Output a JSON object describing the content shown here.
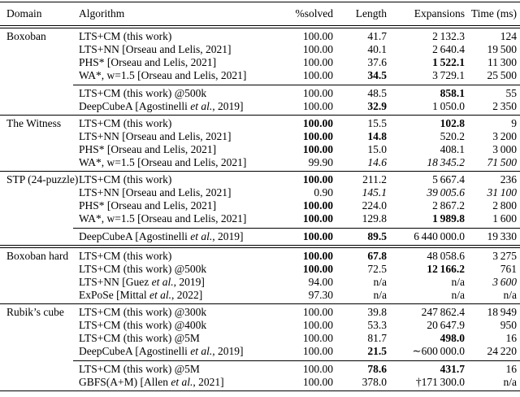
{
  "colors": {
    "background": "#ffffff",
    "text": "#000000",
    "rule": "#000000"
  },
  "table": {
    "columns": [
      "Domain",
      "Algorithm",
      "%solved",
      "Length",
      "Expansions",
      "Time (ms)"
    ],
    "sections": [
      {
        "domain": "Boxoban",
        "rule_above": "none",
        "groups": [
          [
            {
              "algorithm": "LTS+CM (this work)",
              "values": [
                "100.00",
                "41.7",
                "2 132.3",
                "124"
              ],
              "styles": [
                "n",
                "n",
                "n",
                "n"
              ]
            },
            {
              "algorithm": "LTS+NN [Orseau and Lelis, 2021]",
              "values": [
                "100.00",
                "40.1",
                "2 640.4",
                "19 500"
              ],
              "styles": [
                "n",
                "n",
                "n",
                "n"
              ]
            },
            {
              "algorithm": "PHS* [Orseau and Lelis, 2021]",
              "values": [
                "100.00",
                "37.6",
                "1 522.1",
                "11 300"
              ],
              "styles": [
                "n",
                "n",
                "b",
                "n"
              ]
            },
            {
              "algorithm": "WA*, w=1.5 [Orseau and Lelis, 2021]",
              "values": [
                "100.00",
                "34.5",
                "3 729.1",
                "25 500"
              ],
              "styles": [
                "n",
                "b",
                "n",
                "n"
              ]
            }
          ],
          [
            {
              "algorithm": "LTS+CM (this work) @500k",
              "values": [
                "100.00",
                "48.5",
                "858.1",
                "55"
              ],
              "styles": [
                "n",
                "n",
                "b",
                "n"
              ]
            },
            {
              "algorithm": "DeepCubeA [Agostinelli et al., 2019]",
              "values": [
                "100.00",
                "32.9",
                "1 050.0",
                "2 350"
              ],
              "styles": [
                "n",
                "b",
                "n",
                "n"
              ]
            }
          ]
        ]
      },
      {
        "domain": "The Witness",
        "rule_above": "single",
        "groups": [
          [
            {
              "algorithm": "LTS+CM (this work)",
              "values": [
                "100.00",
                "15.5",
                "102.8",
                "9"
              ],
              "styles": [
                "b",
                "n",
                "b",
                "n"
              ]
            },
            {
              "algorithm": "LTS+NN [Orseau and Lelis, 2021]",
              "values": [
                "100.00",
                "14.8",
                "520.2",
                "3 200"
              ],
              "styles": [
                "b",
                "b",
                "n",
                "n"
              ]
            },
            {
              "algorithm": "PHS* [Orseau and Lelis, 2021]",
              "values": [
                "100.00",
                "15.0",
                "408.1",
                "3 000"
              ],
              "styles": [
                "b",
                "n",
                "n",
                "n"
              ]
            },
            {
              "algorithm": "WA*, w=1.5 [Orseau and Lelis, 2021]",
              "values": [
                "99.90",
                "14.6",
                "18 345.2",
                "71 500"
              ],
              "styles": [
                "n",
                "i",
                "i",
                "i"
              ]
            }
          ]
        ]
      },
      {
        "domain": "STP (24-puzzle)",
        "rule_above": "single",
        "groups": [
          [
            {
              "algorithm": "LTS+CM (this work)",
              "values": [
                "100.00",
                "211.2",
                "5 667.4",
                "236"
              ],
              "styles": [
                "b",
                "n",
                "n",
                "n"
              ]
            },
            {
              "algorithm": "LTS+NN [Orseau and Lelis, 2021]",
              "values": [
                "0.90",
                "145.1",
                "39 005.6",
                "31 100"
              ],
              "styles": [
                "n",
                "i",
                "i",
                "i"
              ]
            },
            {
              "algorithm": "PHS* [Orseau and Lelis, 2021]",
              "values": [
                "100.00",
                "224.0",
                "2 867.2",
                "2 800"
              ],
              "styles": [
                "b",
                "n",
                "n",
                "n"
              ]
            },
            {
              "algorithm": "WA*, w=1.5 [Orseau and Lelis, 2021]",
              "values": [
                "100.00",
                "129.8",
                "1 989.8",
                "1 600"
              ],
              "styles": [
                "b",
                "n",
                "b",
                "n"
              ]
            }
          ],
          [
            {
              "algorithm": "DeepCubeA [Agostinelli et al., 2019]",
              "values": [
                "100.00",
                "89.5",
                "6 440 000.0",
                "19 330"
              ],
              "styles": [
                "b",
                "b",
                "n",
                "n"
              ]
            }
          ]
        ]
      },
      {
        "domain": "Boxoban hard",
        "rule_above": "double",
        "groups": [
          [
            {
              "algorithm": "LTS+CM (this work)",
              "values": [
                "100.00",
                "67.8",
                "48 058.6",
                "3 275"
              ],
              "styles": [
                "b",
                "b",
                "n",
                "n"
              ]
            },
            {
              "algorithm": "LTS+CM (this work) @500k",
              "values": [
                "100.00",
                "72.5",
                "12 166.2",
                "761"
              ],
              "styles": [
                "b",
                "n",
                "b",
                "n"
              ]
            },
            {
              "algorithm": "LTS+NN [Guez et al., 2019]",
              "values": [
                "94.00",
                "n/a",
                "n/a",
                "3 600"
              ],
              "styles": [
                "n",
                "n",
                "n",
                "i"
              ]
            },
            {
              "algorithm": "ExPoSe [Mittal et al., 2022]",
              "values": [
                "97.30",
                "n/a",
                "n/a",
                "n/a"
              ],
              "styles": [
                "n",
                "n",
                "n",
                "n"
              ]
            }
          ]
        ]
      },
      {
        "domain": "Rubik’s cube",
        "rule_above": "single",
        "groups": [
          [
            {
              "algorithm": "LTS+CM (this work) @300k",
              "values": [
                "100.00",
                "39.8",
                "247 862.4",
                "18 949"
              ],
              "styles": [
                "n",
                "n",
                "n",
                "n"
              ]
            },
            {
              "algorithm": "LTS+CM (this work) @400k",
              "values": [
                "100.00",
                "53.3",
                "20 647.9",
                "950"
              ],
              "styles": [
                "n",
                "n",
                "n",
                "n"
              ]
            },
            {
              "algorithm": "LTS+CM (this work) @5M",
              "values": [
                "100.00",
                "81.7",
                "498.0",
                "16"
              ],
              "styles": [
                "n",
                "n",
                "b",
                "n"
              ]
            },
            {
              "algorithm": "DeepCubeA [Agostinelli et al., 2019]",
              "values": [
                "100.00",
                "21.5",
                "∼600 000.0",
                "24 220"
              ],
              "styles": [
                "n",
                "b",
                "n",
                "n"
              ]
            }
          ],
          [
            {
              "algorithm": "LTS+CM (this work) @5M",
              "values": [
                "100.00",
                "78.6",
                "431.7",
                "16"
              ],
              "styles": [
                "n",
                "b",
                "b",
                "n"
              ]
            },
            {
              "algorithm": "GBFS(A+M) [Allen et al., 2021]",
              "values": [
                "100.00",
                "378.0",
                "†171 300.0",
                "n/a"
              ],
              "styles": [
                "n",
                "n",
                "n",
                "n"
              ]
            }
          ]
        ]
      }
    ]
  }
}
